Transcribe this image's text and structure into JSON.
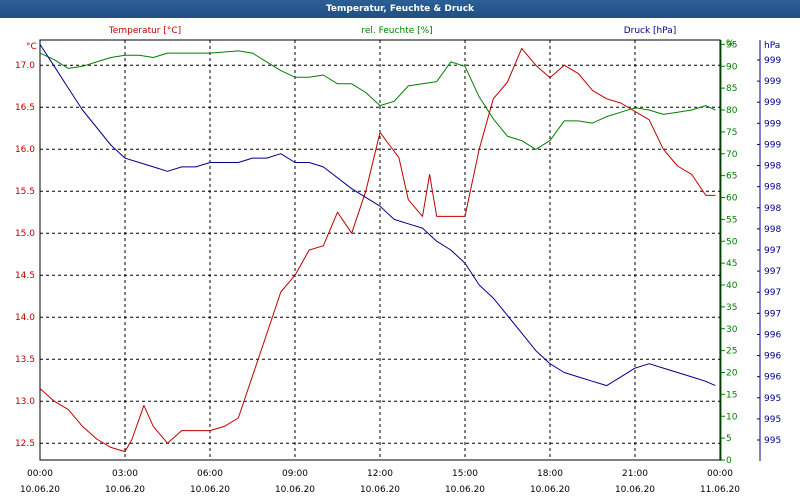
{
  "window": {
    "title": "Temperatur, Feuchte & Druck"
  },
  "axes": {
    "temperature": {
      "label": "Temperatur [°C]",
      "unit": "°C",
      "color": "#c00000",
      "ticks": [
        "17.0",
        "16.5",
        "16.0",
        "15.5",
        "15.0",
        "14.5",
        "14.0",
        "13.5",
        "13.0",
        "12.5"
      ]
    },
    "humidity": {
      "label": "rel. Feuchte [%]",
      "unit": "%",
      "color": "#008000",
      "ticks": [
        "0",
        "5",
        "10",
        "15",
        "20",
        "25",
        "30",
        "35",
        "40",
        "45",
        "50",
        "55",
        "60",
        "65",
        "70",
        "75",
        "80",
        "85",
        "90",
        "95"
      ]
    },
    "pressure": {
      "label": "Druck [hPa]",
      "unit": "hPa",
      "color": "#00008b",
      "ticks": [
        "995",
        "995",
        "995",
        "996",
        "996",
        "996",
        "997",
        "997",
        "997",
        "997",
        "998",
        "998",
        "998",
        "998",
        "999",
        "999",
        "999",
        "999",
        "999"
      ]
    },
    "time": {
      "ticks": [
        {
          "time": "00:00",
          "date": "10.06.20"
        },
        {
          "time": "03:00",
          "date": "10.06.20"
        },
        {
          "time": "06:00",
          "date": "10.06.20"
        },
        {
          "time": "09:00",
          "date": "10.06.20"
        },
        {
          "time": "12:00",
          "date": "10.06.20"
        },
        {
          "time": "15:00",
          "date": "10.06.20"
        },
        {
          "time": "18:00",
          "date": "10.06.20"
        },
        {
          "time": "21:00",
          "date": "10.06.20"
        },
        {
          "time": "00:00",
          "date": "11.06.20"
        }
      ]
    }
  },
  "chart_data": {
    "type": "line",
    "title": "Temperatur, Feuchte & Druck",
    "x_range": [
      "10.06.20 00:00",
      "11.06.20 00:00"
    ],
    "grid": true,
    "series": [
      {
        "name": "Temperatur [°C]",
        "color": "#c00000",
        "ylim": [
          12.3,
          17.3
        ],
        "points": [
          [
            "00:00",
            13.15
          ],
          [
            "00:30",
            13.0
          ],
          [
            "01:00",
            12.9
          ],
          [
            "01:30",
            12.7
          ],
          [
            "02:00",
            12.55
          ],
          [
            "02:30",
            12.45
          ],
          [
            "03:00",
            12.4
          ],
          [
            "03:15",
            12.55
          ],
          [
            "03:40",
            12.95
          ],
          [
            "04:00",
            12.7
          ],
          [
            "04:30",
            12.5
          ],
          [
            "05:00",
            12.65
          ],
          [
            "05:30",
            12.65
          ],
          [
            "06:00",
            12.65
          ],
          [
            "06:30",
            12.7
          ],
          [
            "07:00",
            12.8
          ],
          [
            "07:30",
            13.3
          ],
          [
            "08:00",
            13.8
          ],
          [
            "08:30",
            14.3
          ],
          [
            "09:00",
            14.5
          ],
          [
            "09:30",
            14.8
          ],
          [
            "10:00",
            14.85
          ],
          [
            "10:30",
            15.25
          ],
          [
            "11:00",
            15.0
          ],
          [
            "11:30",
            15.5
          ],
          [
            "12:00",
            16.2
          ],
          [
            "12:20",
            16.05
          ],
          [
            "12:40",
            15.9
          ],
          [
            "13:00",
            15.4
          ],
          [
            "13:30",
            15.2
          ],
          [
            "13:45",
            15.7
          ],
          [
            "14:00",
            15.2
          ],
          [
            "14:30",
            15.2
          ],
          [
            "15:00",
            15.2
          ],
          [
            "15:30",
            16.0
          ],
          [
            "16:00",
            16.6
          ],
          [
            "16:30",
            16.8
          ],
          [
            "17:00",
            17.2
          ],
          [
            "17:30",
            17.0
          ],
          [
            "18:00",
            16.85
          ],
          [
            "18:30",
            17.0
          ],
          [
            "19:00",
            16.9
          ],
          [
            "19:30",
            16.7
          ],
          [
            "20:00",
            16.6
          ],
          [
            "20:30",
            16.55
          ],
          [
            "21:00",
            16.45
          ],
          [
            "21:30",
            16.35
          ],
          [
            "22:00",
            16.0
          ],
          [
            "22:30",
            15.8
          ],
          [
            "23:00",
            15.7
          ],
          [
            "23:30",
            15.45
          ],
          [
            "23:50",
            15.45
          ]
        ]
      },
      {
        "name": "rel. Feuchte [%]",
        "color": "#008000",
        "ylim": [
          0,
          96
        ],
        "points": [
          [
            "00:00",
            93
          ],
          [
            "00:30",
            91.5
          ],
          [
            "01:00",
            89.5
          ],
          [
            "01:30",
            90
          ],
          [
            "02:00",
            91
          ],
          [
            "02:30",
            92
          ],
          [
            "03:00",
            92.5
          ],
          [
            "03:30",
            92.5
          ],
          [
            "04:00",
            92
          ],
          [
            "04:30",
            93
          ],
          [
            "05:00",
            93
          ],
          [
            "06:00",
            93
          ],
          [
            "07:00",
            93.5
          ],
          [
            "07:30",
            93
          ],
          [
            "08:00",
            91
          ],
          [
            "08:30",
            89
          ],
          [
            "09:00",
            87.5
          ],
          [
            "09:30",
            87.5
          ],
          [
            "10:00",
            88
          ],
          [
            "10:30",
            86
          ],
          [
            "11:00",
            86
          ],
          [
            "11:30",
            84
          ],
          [
            "12:00",
            81
          ],
          [
            "12:30",
            82
          ],
          [
            "13:00",
            85.5
          ],
          [
            "13:30",
            86
          ],
          [
            "14:00",
            86.5
          ],
          [
            "14:30",
            91
          ],
          [
            "15:00",
            90
          ],
          [
            "15:30",
            83
          ],
          [
            "16:00",
            78
          ],
          [
            "16:30",
            74
          ],
          [
            "17:00",
            73
          ],
          [
            "17:30",
            71
          ],
          [
            "18:00",
            73
          ],
          [
            "18:30",
            77.5
          ],
          [
            "19:00",
            77.5
          ],
          [
            "19:30",
            77
          ],
          [
            "20:00",
            78.5
          ],
          [
            "20:30",
            79.5
          ],
          [
            "21:00",
            80.5
          ],
          [
            "21:30",
            80
          ],
          [
            "22:00",
            79
          ],
          [
            "22:30",
            79.5
          ],
          [
            "23:00",
            80
          ],
          [
            "23:30",
            81
          ],
          [
            "23:50",
            80
          ]
        ]
      },
      {
        "name": "Druck [hPa]",
        "color": "#00008b",
        "ylim": [
          994.6,
          999.4
        ],
        "points": [
          [
            "00:00",
            999.35
          ],
          [
            "00:30",
            999.1
          ],
          [
            "01:00",
            998.85
          ],
          [
            "01:30",
            998.6
          ],
          [
            "02:00",
            998.4
          ],
          [
            "02:30",
            998.2
          ],
          [
            "03:00",
            998.05
          ],
          [
            "03:30",
            998.0
          ],
          [
            "04:00",
            997.95
          ],
          [
            "04:30",
            997.9
          ],
          [
            "05:00",
            997.95
          ],
          [
            "05:30",
            997.95
          ],
          [
            "06:00",
            998.0
          ],
          [
            "07:00",
            998.0
          ],
          [
            "07:30",
            998.05
          ],
          [
            "08:00",
            998.05
          ],
          [
            "08:30",
            998.1
          ],
          [
            "09:00",
            998.0
          ],
          [
            "09:30",
            998.0
          ],
          [
            "10:00",
            997.95
          ],
          [
            "11:00",
            997.7
          ],
          [
            "12:00",
            997.5
          ],
          [
            "12:30",
            997.35
          ],
          [
            "13:00",
            997.3
          ],
          [
            "13:30",
            997.25
          ],
          [
            "14:00",
            997.1
          ],
          [
            "14:30",
            997.0
          ],
          [
            "15:00",
            996.85
          ],
          [
            "15:30",
            996.6
          ],
          [
            "16:00",
            996.45
          ],
          [
            "16:30",
            996.25
          ],
          [
            "17:00",
            996.05
          ],
          [
            "17:30",
            995.85
          ],
          [
            "18:00",
            995.7
          ],
          [
            "18:30",
            995.6
          ],
          [
            "19:00",
            995.55
          ],
          [
            "19:30",
            995.5
          ],
          [
            "20:00",
            995.45
          ],
          [
            "20:30",
            995.55
          ],
          [
            "21:00",
            995.65
          ],
          [
            "21:30",
            995.7
          ],
          [
            "22:00",
            995.65
          ],
          [
            "22:30",
            995.6
          ],
          [
            "23:00",
            995.55
          ],
          [
            "23:30",
            995.5
          ],
          [
            "23:50",
            995.45
          ]
        ]
      }
    ]
  }
}
